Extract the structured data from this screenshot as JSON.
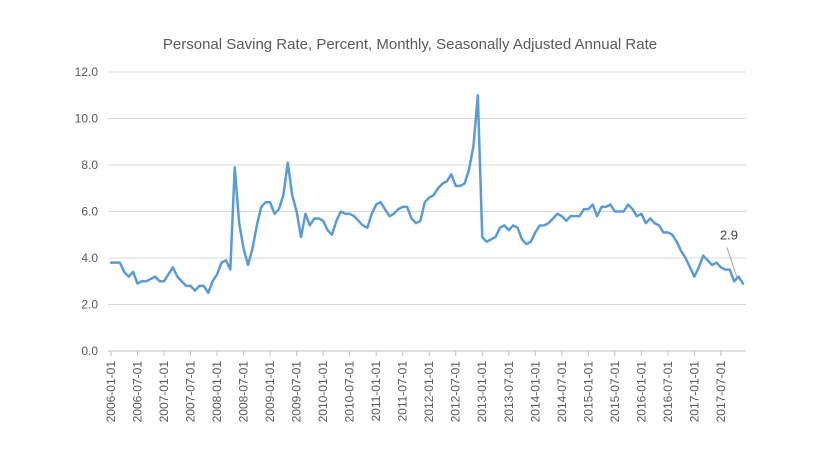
{
  "colors": {
    "series": "#5b9bd5",
    "text": "#595959",
    "grid": "#d9d9d9"
  },
  "chart_data": {
    "type": "line",
    "title": "Personal Saving Rate, Percent, Monthly, Seasonally Adjusted Annual Rate",
    "xlabel": "",
    "ylabel": "",
    "ylim": [
      0,
      12
    ],
    "yticks": [
      "0.0",
      "2.0",
      "4.0",
      "6.0",
      "8.0",
      "10.0",
      "12.0"
    ],
    "grid": true,
    "legend": "none",
    "start": "2006-01",
    "xtick_labels": [
      "2006-01-01",
      "2006-07-01",
      "2007-01-01",
      "2007-07-01",
      "2008-01-01",
      "2008-07-01",
      "2009-01-01",
      "2009-07-01",
      "2010-01-01",
      "2010-07-01",
      "2011-01-01",
      "2011-07-01",
      "2012-01-01",
      "2012-07-01",
      "2013-01-01",
      "2013-07-01",
      "2014-01-01",
      "2014-07-01",
      "2015-01-01",
      "2015-07-01",
      "2016-01-01",
      "2016-07-01",
      "2017-01-01",
      "2017-07-01"
    ],
    "series": [
      {
        "values": [
          3.8,
          3.8,
          3.8,
          3.4,
          3.2,
          3.4,
          2.9,
          3.0,
          3.0,
          3.1,
          3.2,
          3.0,
          3.0,
          3.3,
          3.6,
          3.2,
          3.0,
          2.8,
          2.8,
          2.6,
          2.8,
          2.8,
          2.5,
          3.0,
          3.3,
          3.8,
          3.9,
          3.5,
          7.9,
          5.5,
          4.4,
          3.7,
          4.4,
          5.4,
          6.2,
          6.4,
          6.4,
          5.9,
          6.1,
          6.7,
          8.1,
          6.7,
          6.0,
          4.9,
          5.9,
          5.4,
          5.7,
          5.7,
          5.6,
          5.2,
          5.0,
          5.6,
          6.0,
          5.9,
          5.9,
          5.8,
          5.6,
          5.4,
          5.3,
          5.9,
          6.3,
          6.4,
          6.1,
          5.8,
          5.9,
          6.1,
          6.2,
          6.2,
          5.7,
          5.5,
          5.6,
          6.4,
          6.6,
          6.7,
          7.0,
          7.2,
          7.3,
          7.6,
          7.1,
          7.1,
          7.2,
          7.8,
          8.8,
          11.0,
          4.9,
          4.7,
          4.8,
          4.9,
          5.3,
          5.4,
          5.2,
          5.4,
          5.3,
          4.8,
          4.6,
          4.7,
          5.1,
          5.4,
          5.4,
          5.5,
          5.7,
          5.9,
          5.8,
          5.6,
          5.8,
          5.8,
          5.8,
          6.1,
          6.1,
          6.3,
          5.8,
          6.2,
          6.2,
          6.3,
          6.0,
          6.0,
          6.0,
          6.3,
          6.1,
          5.8,
          5.9,
          5.5,
          5.7,
          5.5,
          5.4,
          5.1,
          5.1,
          5.0,
          4.7,
          4.3,
          4.0,
          3.6,
          3.2,
          3.6,
          4.1,
          3.9,
          3.7,
          3.8,
          3.6,
          3.5,
          3.5,
          3.0,
          3.2,
          2.9
        ]
      }
    ],
    "annotation": {
      "label": "2.9",
      "value": 2.9
    }
  }
}
